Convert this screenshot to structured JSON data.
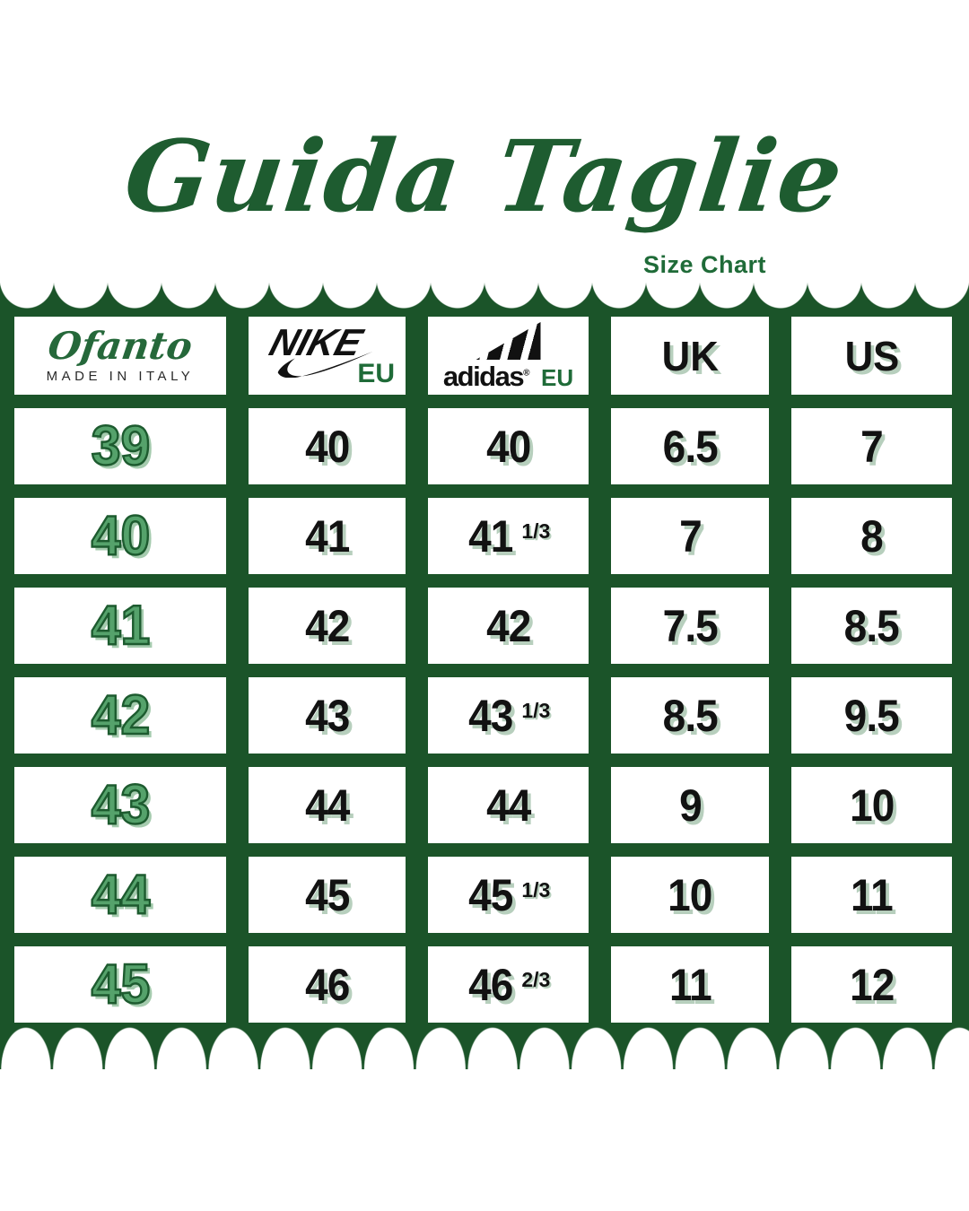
{
  "title": {
    "text": "Guida Taglie",
    "subtitle": "Size Chart"
  },
  "colors": {
    "board_green": "#1b5429",
    "title_green": "#1e5c30",
    "accent_green": "#1f6b38",
    "digit_green": "#55a26b",
    "shadow_green": "#b7cfbd",
    "text_black": "#121212"
  },
  "chart_data": {
    "type": "table",
    "columns": [
      {
        "id": "ofanto",
        "brand": "Ofanto",
        "subtitle": "MADE IN ITALY"
      },
      {
        "id": "nike",
        "wordmark": "NIKE",
        "unit": "EU"
      },
      {
        "id": "adidas",
        "wordmark": "adidas",
        "reg": "®",
        "unit": "EU"
      },
      {
        "id": "uk",
        "label": "UK"
      },
      {
        "id": "us",
        "label": "US"
      }
    ],
    "rows": [
      {
        "ofanto": "39",
        "nike": "40",
        "adidas": "40",
        "adidas_frac": "",
        "uk": "6.5",
        "us": "7"
      },
      {
        "ofanto": "40",
        "nike": "41",
        "adidas": "41",
        "adidas_frac": "1/3",
        "uk": "7",
        "us": "8"
      },
      {
        "ofanto": "41",
        "nike": "42",
        "adidas": "42",
        "adidas_frac": "",
        "uk": "7.5",
        "us": "8.5"
      },
      {
        "ofanto": "42",
        "nike": "43",
        "adidas": "43",
        "adidas_frac": "1/3",
        "uk": "8.5",
        "us": "9.5"
      },
      {
        "ofanto": "43",
        "nike": "44",
        "adidas": "44",
        "adidas_frac": "",
        "uk": "9",
        "us": "10"
      },
      {
        "ofanto": "44",
        "nike": "45",
        "adidas": "45",
        "adidas_frac": "1/3",
        "uk": "10",
        "us": "11"
      },
      {
        "ofanto": "45",
        "nike": "46",
        "adidas": "46",
        "adidas_frac": "2/3",
        "uk": "11",
        "us": "12"
      }
    ]
  }
}
